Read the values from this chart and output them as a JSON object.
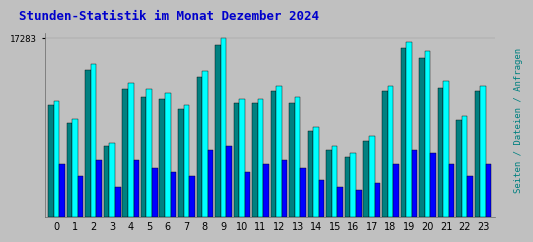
{
  "title": "Stunden-Statistik im Monat Dezember 2024",
  "title_color": "#0000cc",
  "title_fontsize": 9,
  "background_color": "#c0c0c0",
  "plot_bg_color": "#c0c0c0",
  "ylabel": "Seiten / Dateien / Anfragen",
  "ylabel_color": "#008080",
  "ylabel_fontsize": 6.5,
  "hours": [
    0,
    1,
    2,
    3,
    4,
    5,
    6,
    7,
    8,
    9,
    10,
    11,
    12,
    13,
    14,
    15,
    16,
    17,
    18,
    19,
    20,
    21,
    22,
    23
  ],
  "seiten": [
    11200,
    9500,
    14800,
    7200,
    13000,
    12400,
    12000,
    10800,
    14100,
    17283,
    11400,
    11400,
    12700,
    11600,
    8700,
    6900,
    6200,
    7800,
    12700,
    16900,
    16000,
    13100,
    9800,
    12700
  ],
  "dateien": [
    10800,
    9100,
    14200,
    6900,
    12400,
    11600,
    11400,
    10400,
    13500,
    16600,
    11000,
    11000,
    12200,
    11000,
    8300,
    6500,
    5800,
    7400,
    12200,
    16300,
    15400,
    12500,
    9400,
    12200
  ],
  "anfragen": [
    5100,
    4000,
    5500,
    2900,
    5500,
    4700,
    4400,
    4000,
    6500,
    6900,
    4400,
    5100,
    5500,
    4700,
    3600,
    2900,
    2600,
    3300,
    5100,
    6500,
    6200,
    5100,
    4000,
    5100
  ],
  "color_seiten": "#00ffff",
  "color_dateien": "#008080",
  "color_anfragen": "#0000ff",
  "bar_width": 0.3,
  "ymax": 17283,
  "border_color": "#000000"
}
